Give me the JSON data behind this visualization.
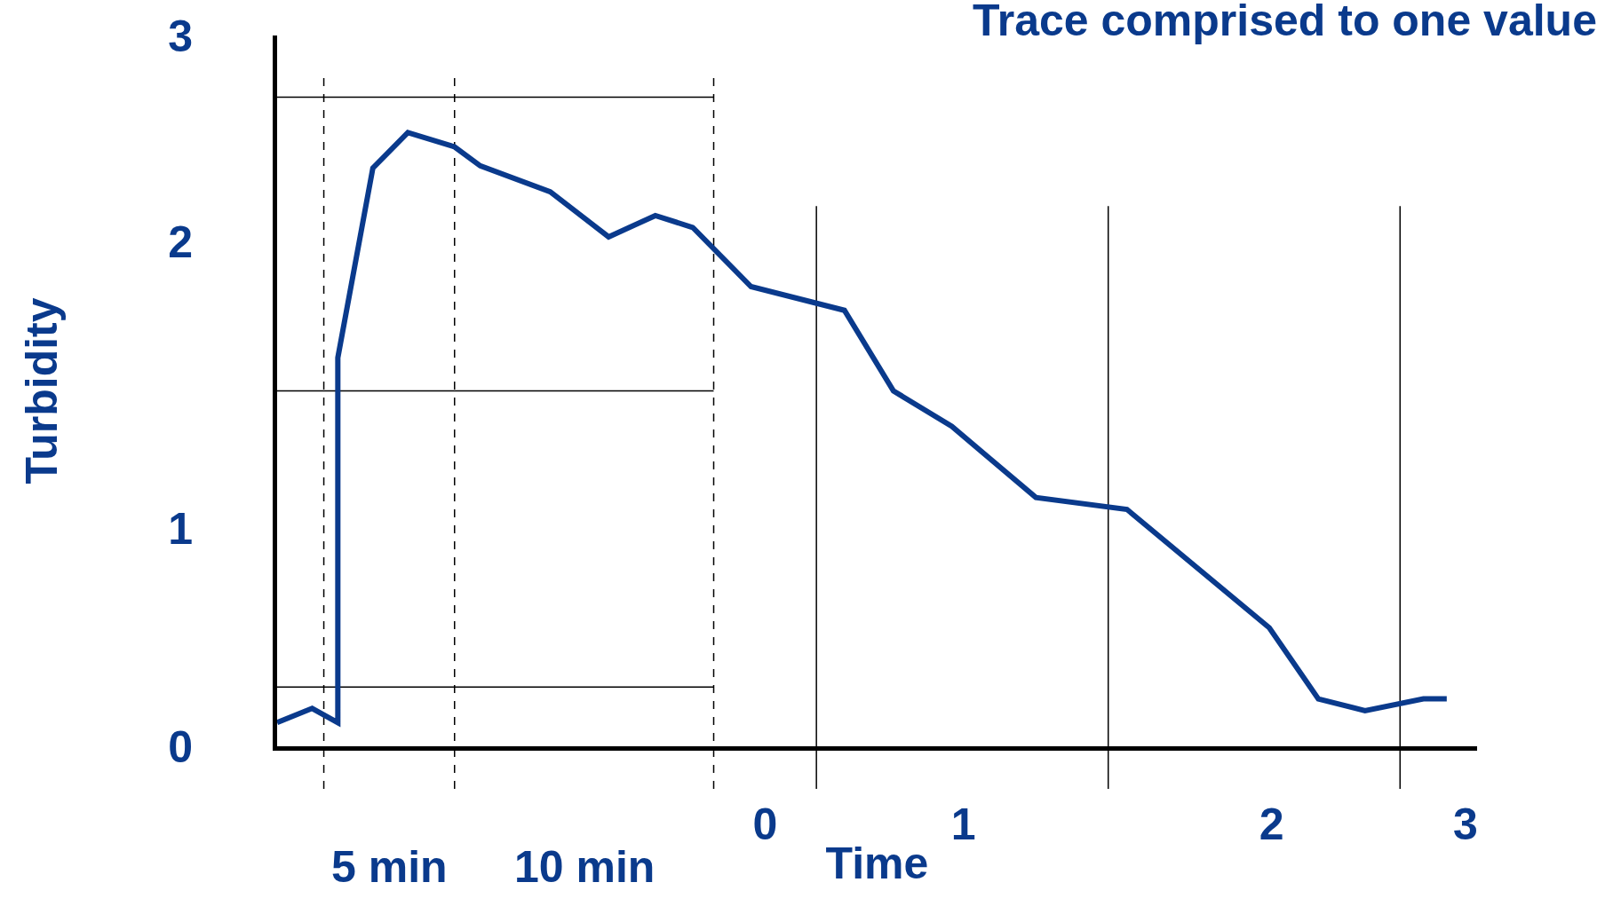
{
  "chart_data": {
    "type": "line",
    "title": "Trace comprised to one value",
    "xlabel": "Time",
    "ylabel": "Turbidity",
    "x": [
      -2.09,
      -1.94,
      -1.83,
      -1.83,
      -1.68,
      -1.53,
      -1.33,
      -1.22,
      -0.92,
      -0.67,
      -0.47,
      -0.31,
      -0.06,
      0.34,
      0.55,
      0.8,
      1.16,
      1.55,
      2.16,
      2.37,
      2.57,
      2.82,
      2.92
    ],
    "series": [
      {
        "color": "#0a3a8c",
        "values": [
          0.1,
          0.16,
          0.1,
          1.64,
          2.44,
          2.59,
          2.53,
          2.45,
          2.34,
          2.15,
          2.24,
          2.19,
          1.94,
          1.84,
          1.5,
          1.35,
          1.05,
          1.0,
          0.5,
          0.2,
          0.15,
          0.2,
          0.2
        ]
      }
    ],
    "xlim": [
      -2.09,
      3.05
    ],
    "ylim": [
      0,
      3
    ],
    "xticks": [
      0,
      {
        "value": 0.85,
        "label": "1"
      },
      {
        "value": 2.17,
        "label": "2"
      },
      3
    ],
    "yticks": [
      0,
      {
        "value": 0.92,
        "label": "1"
      },
      {
        "value": 2.13,
        "label": "2"
      },
      3
    ],
    "ref_lines": [
      {
        "axis": "y",
        "value": 2.74,
        "color": "#000000",
        "line_style": "solid"
      },
      {
        "axis": "y",
        "value": 1.5,
        "color": "#000000",
        "line_style": "solid"
      },
      {
        "axis": "y",
        "value": 0.25,
        "color": "#000000",
        "line_style": "solid"
      },
      {
        "axis": "x",
        "value": -1.89,
        "color": "#000000",
        "line_style": "dashed"
      },
      {
        "axis": "x",
        "value": -1.33,
        "color": "#000000",
        "line_style": "dashed"
      },
      {
        "axis": "x",
        "value": -0.22,
        "color": "#000000",
        "line_style": "dashed"
      },
      {
        "axis": "x",
        "value": 0.22,
        "color": "#000000",
        "line_style": "solid"
      },
      {
        "axis": "x",
        "value": 1.47,
        "color": "#000000",
        "line_style": "solid"
      },
      {
        "axis": "x",
        "value": 2.72,
        "color": "#000000",
        "line_style": "solid"
      }
    ],
    "annotations": [
      "5 min",
      "10 min"
    ],
    "grid": false,
    "marker": "none",
    "line_style": "solid"
  }
}
